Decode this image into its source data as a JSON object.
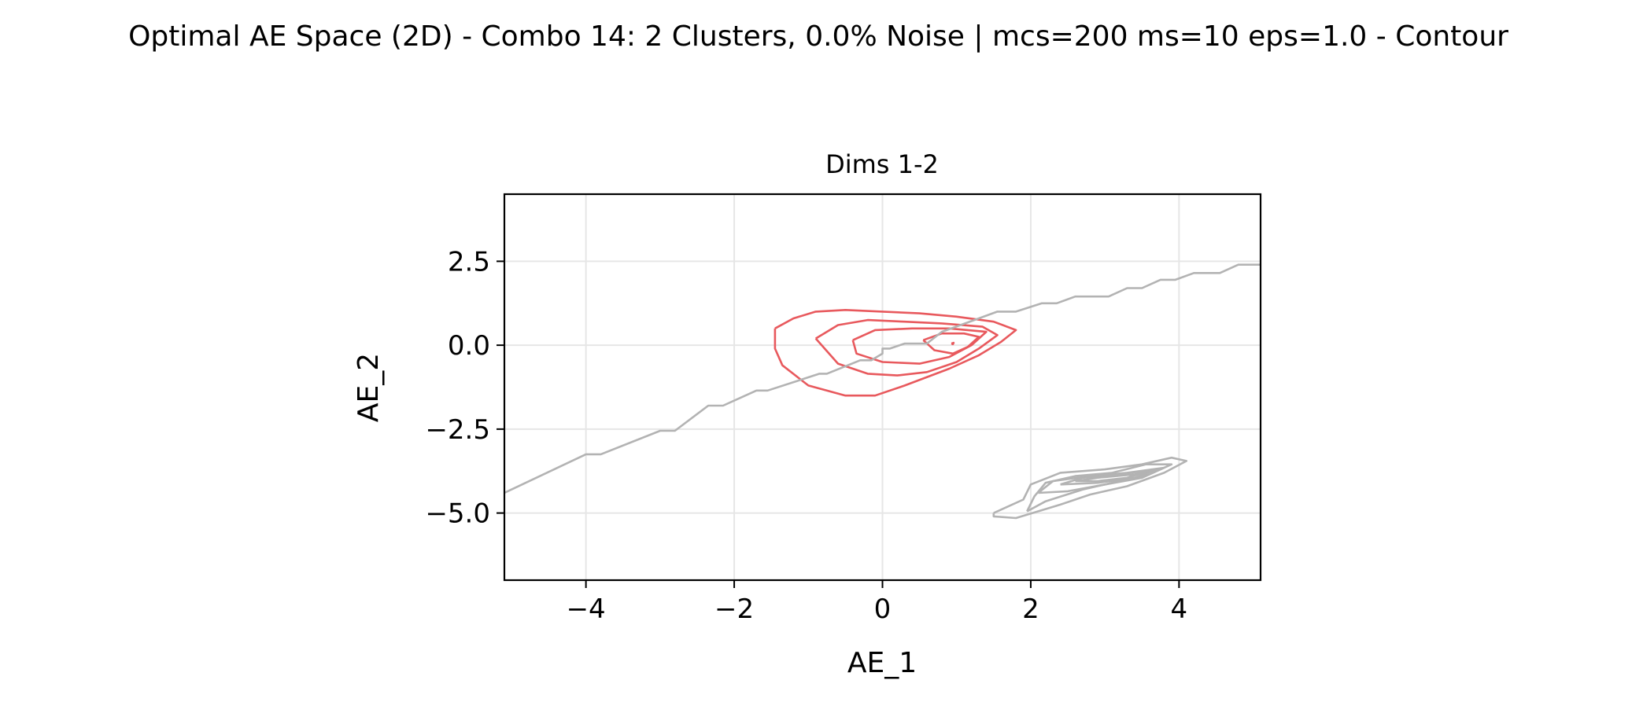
{
  "chart_data": {
    "type": "contour",
    "suptitle": "Optimal AE Space (2D) - Combo 14: 2 Clusters, 0.0% Noise | mcs=200 ms=10 eps=1.0 - Contour",
    "title": "Dims 1-2",
    "xlabel": "AE_1",
    "ylabel": "AE_2",
    "xlim": [
      -5.1,
      5.1
    ],
    "ylim": [
      -7.0,
      4.5
    ],
    "xticks": [
      -4,
      -2,
      0,
      2,
      4
    ],
    "xtick_labels": [
      "−4",
      "−2",
      "0",
      "2",
      "4"
    ],
    "yticks": [
      2.5,
      0.0,
      -2.5,
      -5.0
    ],
    "ytick_labels": [
      "2.5",
      "0.0",
      "−2.5",
      "−5.0"
    ],
    "grid": true,
    "colors": {
      "red_cluster": "#e8595d",
      "gray_cluster": "#b3b3b3",
      "grid": "#e6e6e6"
    },
    "series": [
      {
        "color": "#e8595d",
        "contours": [
          [
            [
              -1.45,
              0.5
            ],
            [
              -1.2,
              0.8
            ],
            [
              -0.9,
              1.0
            ],
            [
              -0.5,
              1.05
            ],
            [
              0.0,
              1.0
            ],
            [
              0.5,
              0.95
            ],
            [
              1.0,
              0.85
            ],
            [
              1.5,
              0.7
            ],
            [
              1.8,
              0.45
            ],
            [
              1.6,
              0.1
            ],
            [
              1.3,
              -0.3
            ],
            [
              0.9,
              -0.7
            ],
            [
              0.3,
              -1.2
            ],
            [
              -0.1,
              -1.5
            ],
            [
              -0.5,
              -1.5
            ],
            [
              -1.0,
              -1.2
            ],
            [
              -1.35,
              -0.6
            ],
            [
              -1.45,
              -0.1
            ],
            [
              -1.45,
              0.5
            ]
          ],
          [
            [
              -0.9,
              0.2
            ],
            [
              -0.6,
              0.6
            ],
            [
              -0.2,
              0.75
            ],
            [
              0.3,
              0.7
            ],
            [
              0.8,
              0.65
            ],
            [
              1.35,
              0.55
            ],
            [
              1.55,
              0.3
            ],
            [
              1.3,
              -0.1
            ],
            [
              1.0,
              -0.5
            ],
            [
              0.6,
              -0.8
            ],
            [
              0.2,
              -0.9
            ],
            [
              -0.2,
              -0.85
            ],
            [
              -0.6,
              -0.55
            ],
            [
              -0.9,
              0.2
            ]
          ],
          [
            [
              -0.4,
              0.15
            ],
            [
              -0.1,
              0.45
            ],
            [
              0.4,
              0.5
            ],
            [
              0.9,
              0.5
            ],
            [
              1.4,
              0.4
            ],
            [
              1.2,
              0.0
            ],
            [
              0.9,
              -0.35
            ],
            [
              0.5,
              -0.55
            ],
            [
              0.0,
              -0.5
            ],
            [
              -0.35,
              -0.25
            ],
            [
              -0.4,
              0.15
            ]
          ],
          [
            [
              0.55,
              0.15
            ],
            [
              0.8,
              0.35
            ],
            [
              1.1,
              0.35
            ],
            [
              1.3,
              0.25
            ],
            [
              1.15,
              -0.05
            ],
            [
              0.95,
              -0.25
            ],
            [
              0.7,
              -0.15
            ],
            [
              0.55,
              0.15
            ]
          ],
          [
            [
              0.93,
              0.05
            ],
            [
              0.96,
              0.07
            ],
            [
              0.95,
              0.03
            ],
            [
              0.93,
              0.05
            ]
          ]
        ]
      },
      {
        "color": "#b3b3b3",
        "contours": [
          [
            [
              -5.1,
              -4.4
            ],
            [
              -4.0,
              -3.25
            ],
            [
              -3.8,
              -3.25
            ],
            [
              -3.0,
              -2.55
            ],
            [
              -2.8,
              -2.55
            ],
            [
              -2.35,
              -1.8
            ],
            [
              -2.15,
              -1.8
            ],
            [
              -1.7,
              -1.35
            ],
            [
              -1.55,
              -1.35
            ],
            [
              -0.85,
              -0.85
            ],
            [
              -0.75,
              -0.85
            ],
            [
              -0.3,
              -0.45
            ],
            [
              -0.15,
              -0.45
            ],
            [
              0.0,
              -0.25
            ],
            [
              0.0,
              -0.1
            ],
            [
              0.1,
              -0.1
            ],
            [
              0.3,
              0.05
            ],
            [
              0.6,
              0.05
            ],
            [
              0.8,
              0.4
            ],
            [
              1.3,
              0.8
            ],
            [
              1.55,
              1.0
            ],
            [
              1.8,
              1.0
            ],
            [
              2.15,
              1.25
            ],
            [
              2.35,
              1.25
            ],
            [
              2.6,
              1.45
            ],
            [
              3.05,
              1.45
            ],
            [
              3.3,
              1.7
            ],
            [
              3.5,
              1.7
            ],
            [
              3.75,
              1.95
            ],
            [
              3.95,
              1.95
            ],
            [
              4.2,
              2.15
            ],
            [
              4.55,
              2.15
            ],
            [
              4.8,
              2.4
            ],
            [
              5.1,
              2.4
            ]
          ],
          [
            [
              1.5,
              -5.0
            ],
            [
              1.9,
              -4.6
            ],
            [
              2.0,
              -4.15
            ],
            [
              2.4,
              -3.8
            ],
            [
              3.0,
              -3.7
            ],
            [
              3.5,
              -3.55
            ],
            [
              3.9,
              -3.35
            ],
            [
              4.1,
              -3.45
            ],
            [
              3.8,
              -3.8
            ],
            [
              3.3,
              -4.2
            ],
            [
              2.8,
              -4.45
            ],
            [
              2.4,
              -4.75
            ],
            [
              1.8,
              -5.15
            ],
            [
              1.5,
              -5.1
            ],
            [
              1.5,
              -5.0
            ]
          ],
          [
            [
              1.95,
              -4.95
            ],
            [
              2.05,
              -4.5
            ],
            [
              2.2,
              -4.1
            ],
            [
              2.6,
              -3.9
            ],
            [
              3.1,
              -3.8
            ],
            [
              3.55,
              -3.55
            ],
            [
              3.9,
              -3.55
            ],
            [
              3.6,
              -3.85
            ],
            [
              3.1,
              -4.1
            ],
            [
              2.7,
              -4.3
            ],
            [
              2.2,
              -4.65
            ],
            [
              1.95,
              -4.95
            ]
          ],
          [
            [
              2.1,
              -4.4
            ],
            [
              2.3,
              -4.05
            ],
            [
              2.8,
              -3.9
            ],
            [
              3.3,
              -3.8
            ],
            [
              3.8,
              -3.65
            ],
            [
              3.5,
              -3.95
            ],
            [
              3.0,
              -4.15
            ],
            [
              2.5,
              -4.35
            ],
            [
              2.1,
              -4.4
            ]
          ],
          [
            [
              2.4,
              -4.15
            ],
            [
              2.7,
              -3.95
            ],
            [
              3.2,
              -3.85
            ],
            [
              3.7,
              -3.7
            ],
            [
              3.4,
              -3.95
            ],
            [
              2.9,
              -4.1
            ],
            [
              2.4,
              -4.15
            ]
          ],
          [
            [
              2.6,
              -4.05
            ],
            [
              2.9,
              -3.95
            ],
            [
              3.4,
              -3.85
            ],
            [
              3.6,
              -3.75
            ],
            [
              3.3,
              -3.95
            ],
            [
              2.9,
              -4.05
            ],
            [
              2.6,
              -4.05
            ]
          ]
        ]
      }
    ]
  }
}
